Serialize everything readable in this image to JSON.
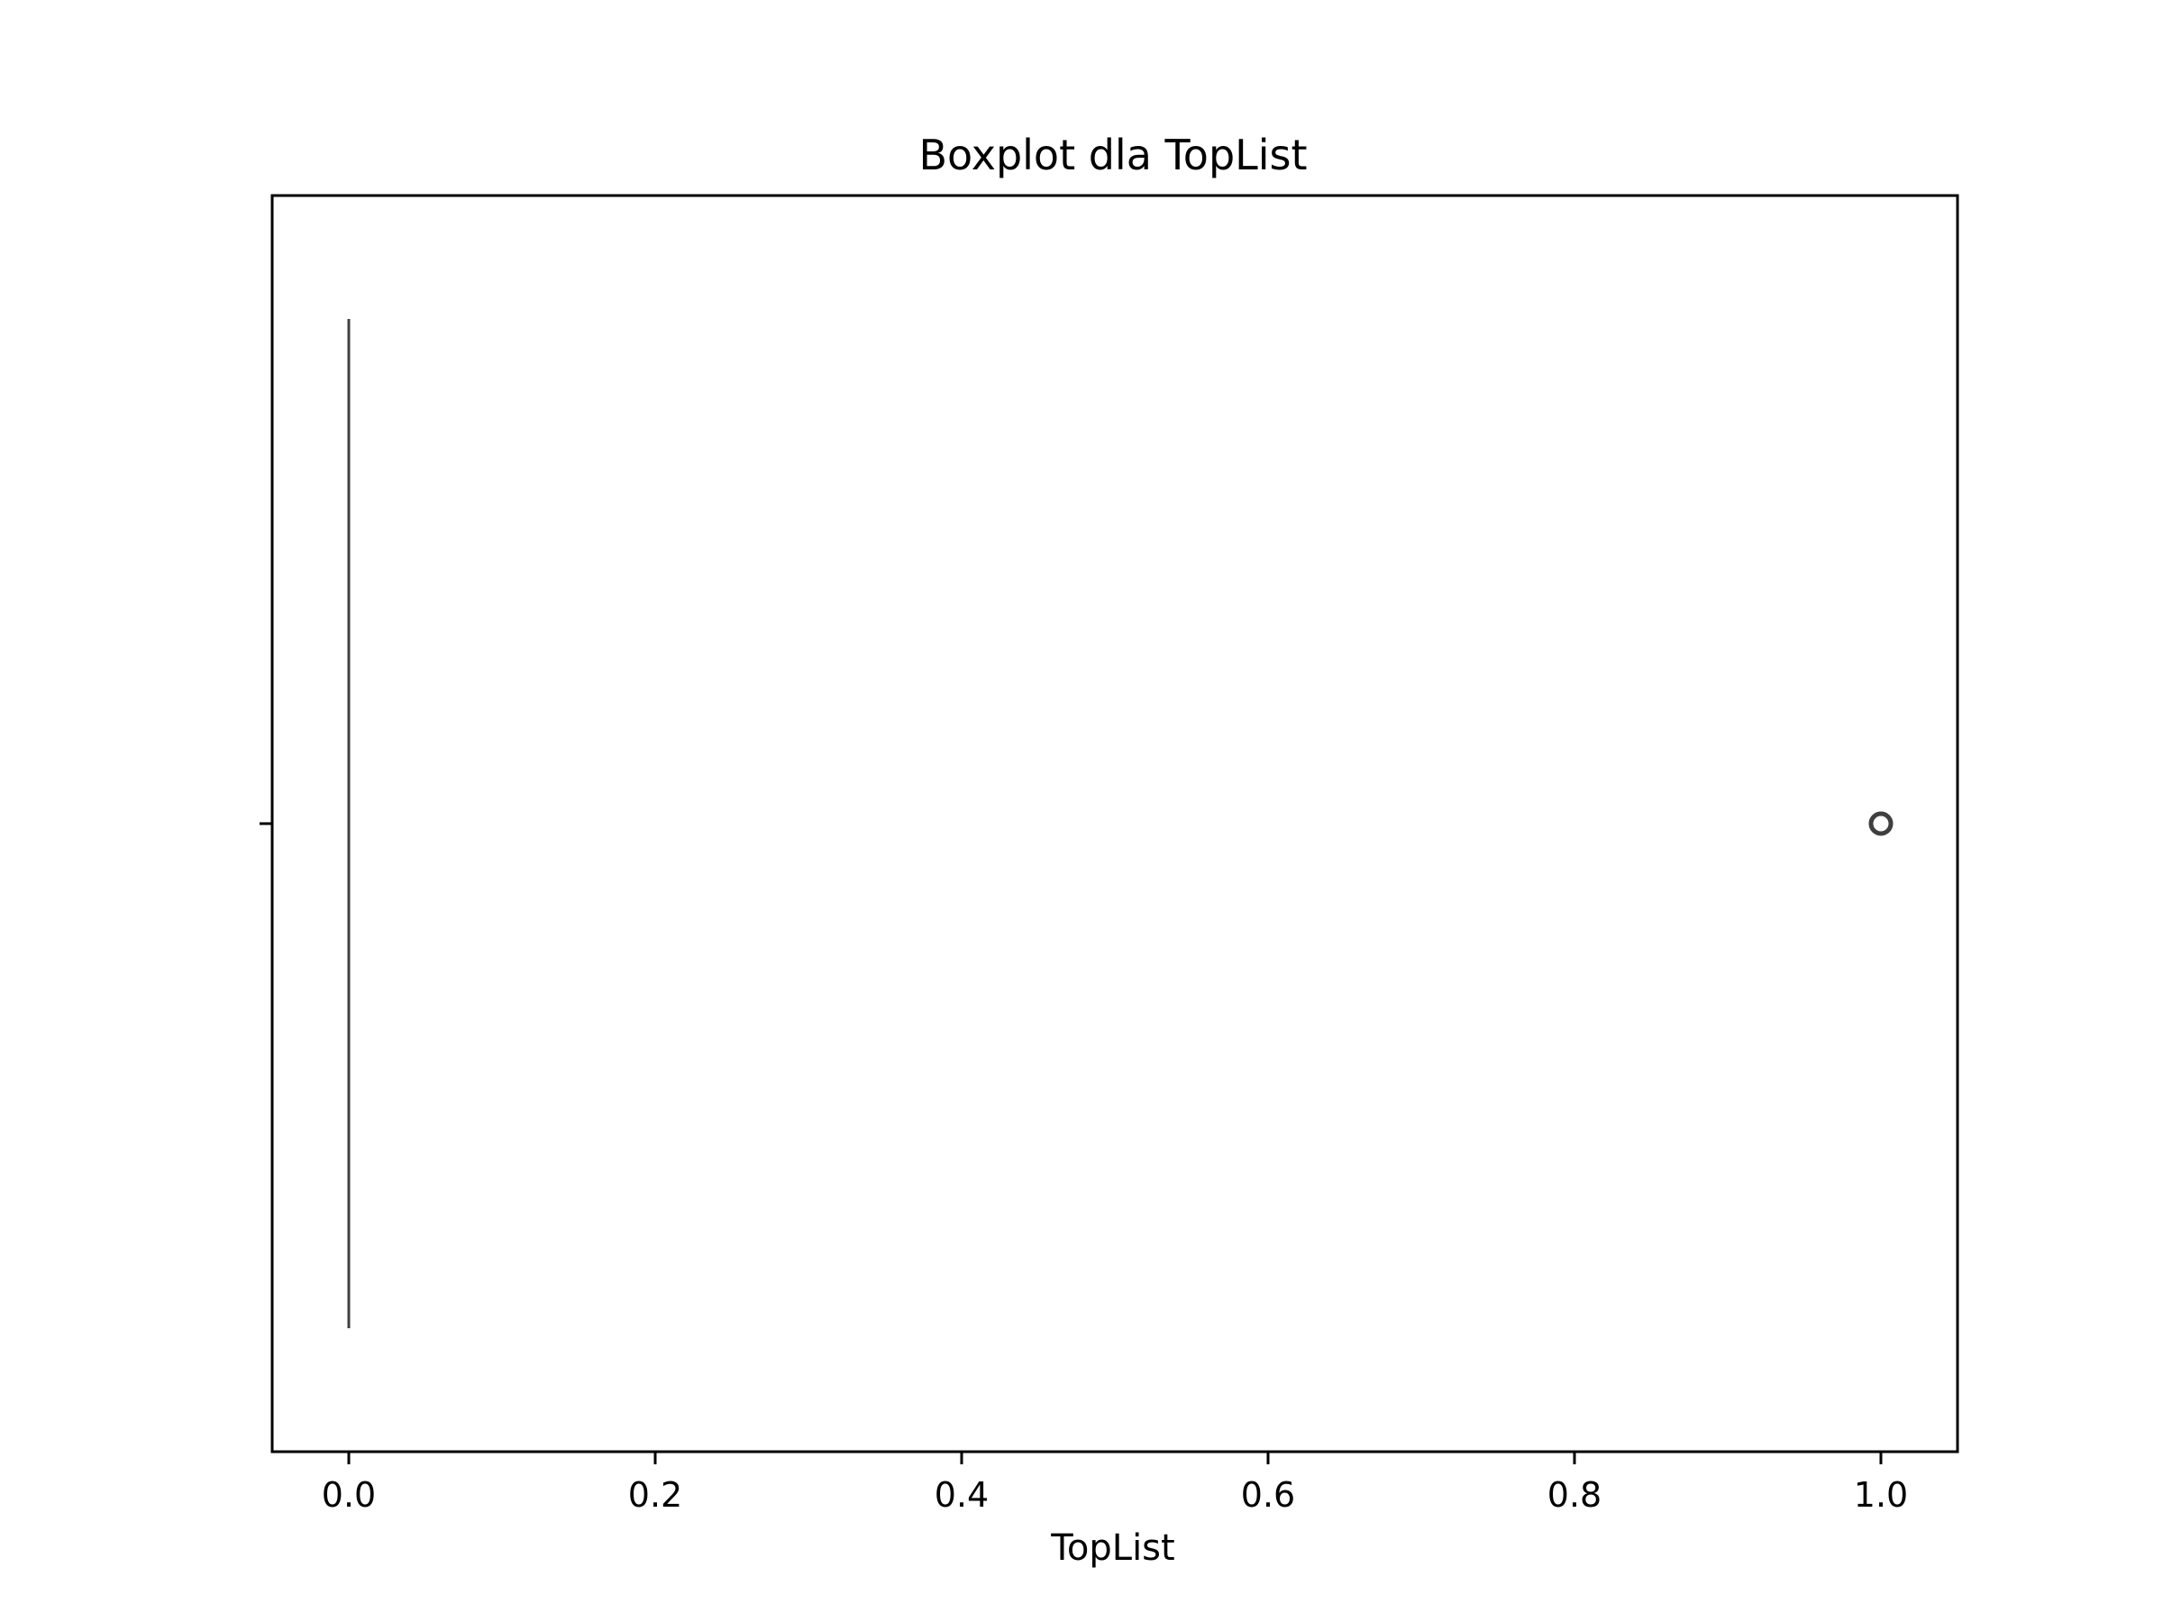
{
  "chart_data": {
    "type": "box",
    "orientation": "horizontal",
    "title": "Boxplot dla TopList",
    "xlabel": "TopList",
    "ylabel": "",
    "xlim": [
      -0.05,
      1.05
    ],
    "xticks": [
      0.0,
      0.2,
      0.4,
      0.6,
      0.8,
      1.0
    ],
    "xtick_labels": [
      "0.0",
      "0.2",
      "0.4",
      "0.6",
      "0.8",
      "1.0"
    ],
    "grid": false,
    "series": [
      {
        "min": 0.0,
        "q1": 0.0,
        "median": 0.0,
        "q3": 0.0,
        "max": 0.0,
        "outliers": [
          1.0
        ]
      }
    ],
    "colors": {
      "box_line": "#3f3f3f",
      "outlier_edge": "#3f3f3f",
      "frame": "#000000"
    }
  }
}
